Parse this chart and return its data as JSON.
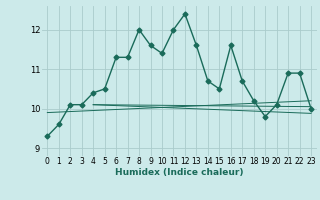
{
  "title": "",
  "xlabel": "Humidex (Indice chaleur)",
  "background_color": "#cceaea",
  "grid_color": "#aacccc",
  "line_color": "#1a6b5a",
  "ylim": [
    8.8,
    12.6
  ],
  "xlim": [
    -0.5,
    23.5
  ],
  "yticks": [
    9,
    10,
    11,
    12
  ],
  "xticks": [
    0,
    1,
    2,
    3,
    4,
    5,
    6,
    7,
    8,
    9,
    10,
    11,
    12,
    13,
    14,
    15,
    16,
    17,
    18,
    19,
    20,
    21,
    22,
    23
  ],
  "xtick_labels": [
    "0",
    "1",
    "2",
    "3",
    "4",
    "5",
    "6",
    "7",
    "8",
    "9",
    "10",
    "11",
    "12",
    "13",
    "14",
    "15",
    "16",
    "17",
    "18",
    "19",
    "20",
    "21",
    "22",
    "23"
  ],
  "main_series": [
    9.3,
    9.6,
    10.1,
    10.1,
    10.4,
    10.5,
    11.3,
    11.3,
    12.0,
    11.6,
    11.4,
    12.0,
    12.4,
    11.6,
    10.7,
    10.5,
    11.6,
    10.7,
    10.2,
    9.8,
    10.1,
    10.9,
    10.9,
    10.0
  ],
  "reg_line": [
    [
      0,
      9.9
    ],
    [
      23,
      10.2
    ]
  ],
  "flat_line1": [
    [
      4,
      10.1
    ],
    [
      23,
      10.05
    ]
  ],
  "flat_line2": [
    [
      4,
      10.1
    ],
    [
      23,
      9.88
    ]
  ],
  "marker": "D",
  "markersize": 2.5,
  "linewidth": 1.0,
  "thin_linewidth": 0.7,
  "xlabel_fontsize": 6.5,
  "tick_fontsize": 5.5
}
